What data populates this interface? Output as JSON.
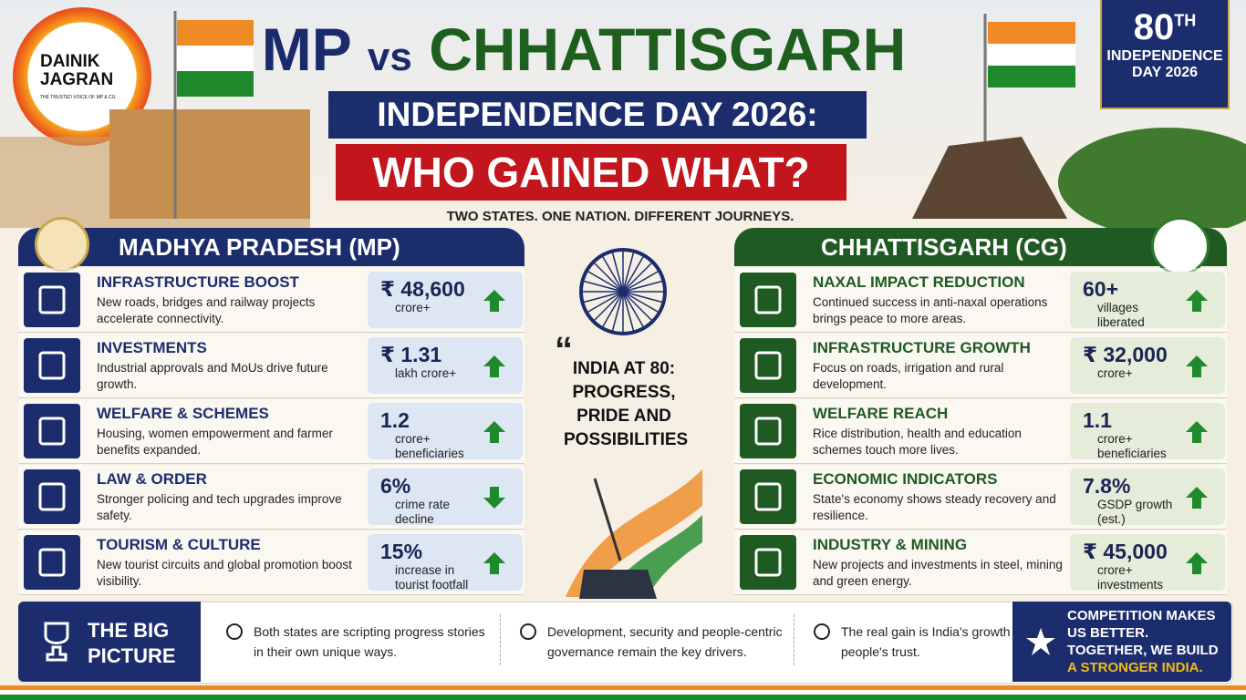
{
  "logo": {
    "name": "DAINIK JAGRAN",
    "tagline": "THE TRUSTED VOICE OF MP & CG"
  },
  "header": {
    "title_a": "MP",
    "title_vs": "vs",
    "title_b": "CHHATTISGARH",
    "subtitle_1": "INDEPENDENCE DAY 2026:",
    "subtitle_2": "WHO GAINED WHAT?",
    "tagline": "TWO STATES. ONE NATION. DIFFERENT JOURNEYS."
  },
  "badge": {
    "number": "80",
    "suffix": "TH",
    "line_1": "INDEPENDENCE",
    "line_2": "DAY 2026"
  },
  "mp": {
    "title": "MADHYA PRADESH (MP)",
    "items": [
      {
        "title": "INFRASTRUCTURE BOOST",
        "desc": "New roads, bridges and railway projects accelerate connectivity.",
        "value": "₹ 48,600",
        "unit": "crore+",
        "trend": "up"
      },
      {
        "title": "INVESTMENTS",
        "desc": "Industrial approvals and MoUs drive future growth.",
        "value": "₹ 1.31",
        "unit": "lakh crore+",
        "trend": "up"
      },
      {
        "title": "WELFARE & SCHEMES",
        "desc": "Housing, women empowerment and farmer benefits expanded.",
        "value": "1.2",
        "unit": "crore+ beneficiaries",
        "trend": "up"
      },
      {
        "title": "LAW & ORDER",
        "desc": "Stronger policing and tech upgrades improve safety.",
        "value": "6%",
        "unit": "crime rate decline",
        "trend": "down"
      },
      {
        "title": "TOURISM & CULTURE",
        "desc": "New tourist circuits and global promotion boost visibility.",
        "value": "15%",
        "unit": "increase in tourist footfall",
        "trend": "up"
      }
    ]
  },
  "cg": {
    "title": "CHHATTISGARH (CG)",
    "items": [
      {
        "title": "NAXAL IMPACT REDUCTION",
        "desc": "Continued success in anti-naxal operations brings peace to more areas.",
        "value": "60+",
        "unit": "villages liberated",
        "trend": "up"
      },
      {
        "title": "INFRASTRUCTURE GROWTH",
        "desc": "Focus on roads, irrigation and rural development.",
        "value": "₹ 32,000",
        "unit": "crore+",
        "trend": "up"
      },
      {
        "title": "WELFARE REACH",
        "desc": "Rice distribution, health and education schemes touch more lives.",
        "value": "1.1",
        "unit": "crore+ beneficiaries",
        "trend": "up"
      },
      {
        "title": "ECONOMIC INDICATORS",
        "desc": "State's economy shows steady recovery and resilience.",
        "value": "7.8%",
        "unit": "GSDP growth (est.)",
        "trend": "up"
      },
      {
        "title": "INDUSTRY & MINING",
        "desc": "New projects and investments in steel, mining and green energy.",
        "value": "₹ 45,000",
        "unit": "crore+ investments",
        "trend": "up"
      }
    ]
  },
  "center": {
    "quote_mark": "“",
    "quote": "INDIA AT 80: PROGRESS, PRIDE AND POSSIBILITIES"
  },
  "footer": {
    "title": "THE BIG PICTURE",
    "points": [
      "Both states are scripting progress stories in their own unique ways.",
      "Development, security and people-centric governance remain the key drivers.",
      "The real gain is India's growth and its people's trust."
    ],
    "closing": "COMPETITION MAKES US BETTER. TOGETHER, WE BUILD",
    "closing_highlight": "A STRONGER INDIA."
  }
}
